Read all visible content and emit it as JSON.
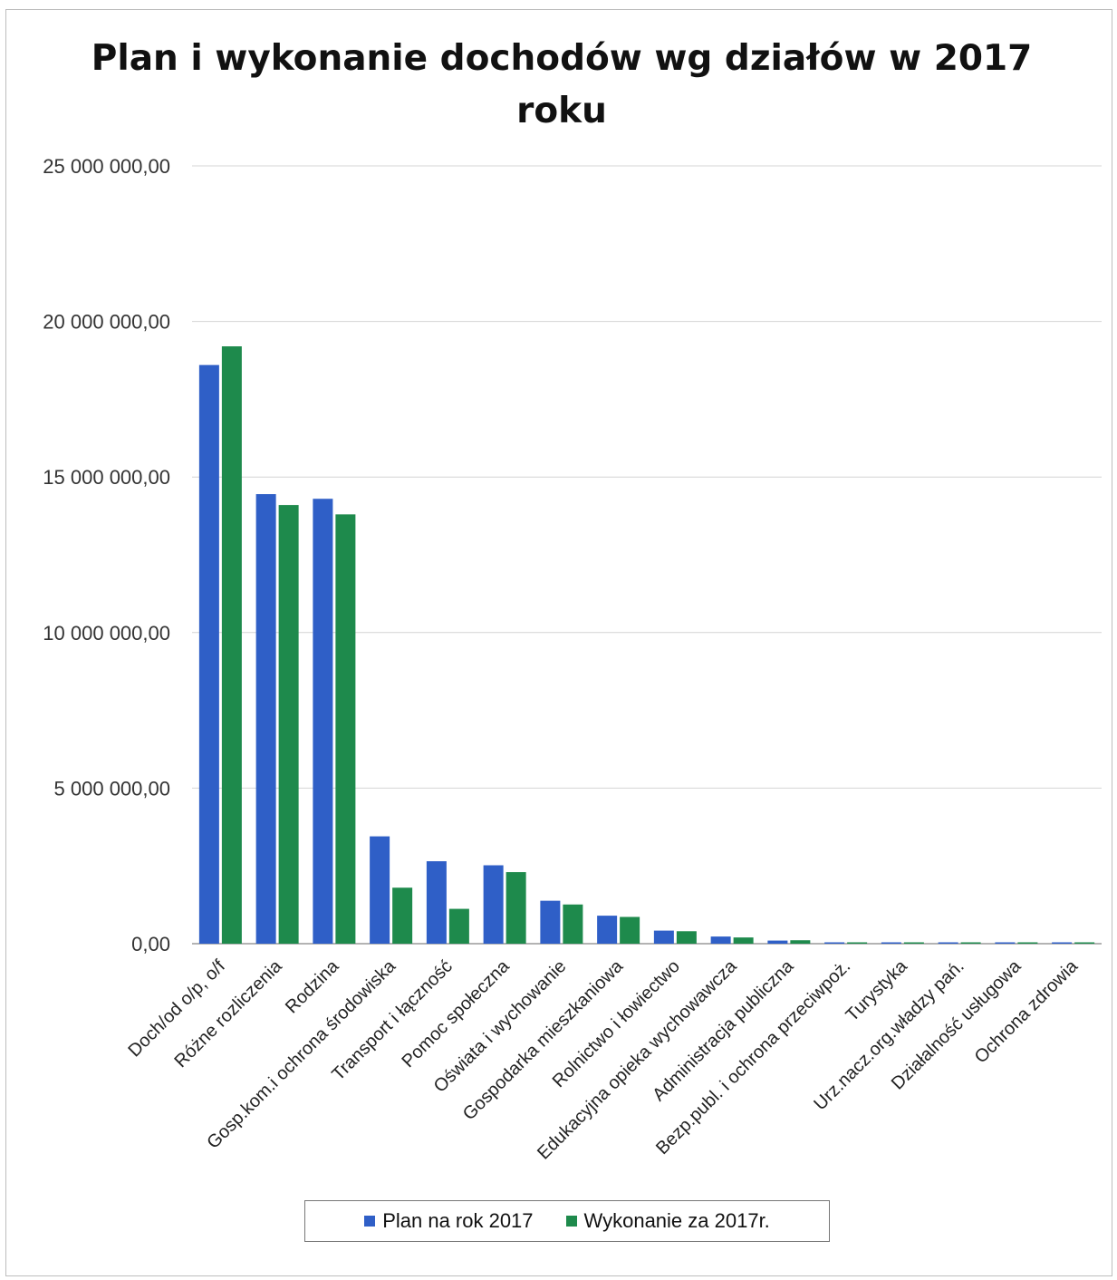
{
  "chart_data": {
    "type": "bar",
    "title": "Plan i wykonanie dochodów wg działów w 2017 roku",
    "xlabel": "",
    "ylabel": "",
    "ylim": [
      0,
      25000000
    ],
    "yticks": [
      0,
      5000000,
      10000000,
      15000000,
      20000000,
      25000000
    ],
    "ytick_labels": [
      "0,00",
      "5 000 000,00",
      "10 000 000,00",
      "15 000 000,00",
      "20 000 000,00",
      "25 000 000,00"
    ],
    "grid": true,
    "legend_position": "bottom",
    "categories": [
      "Doch/od o/p, o/f",
      "Różne rozliczenia",
      "Rodzina",
      "Gosp.kom.i ochrona środowiska",
      "Transport i łączność",
      "Pomoc społeczna",
      "Oświata i wychowanie",
      "Gospodarka mieszkaniowa",
      "Rolnictwo i łowiectwo",
      "Edukacyjna opieka wychowawcza",
      "Administracja publiczna",
      "Bezp.publ. i ochrona przeciwpoż.",
      "Turystyka",
      "Urz.nacz.org.władzy pań.",
      "Działalność usługowa",
      "Ochrona zdrowia"
    ],
    "series": [
      {
        "name": "Plan na rok 2017",
        "color": "#2f5fc7",
        "values": [
          18600000,
          14450000,
          14300000,
          3450000,
          2650000,
          2520000,
          1380000,
          900000,
          420000,
          230000,
          100000,
          20000,
          15000,
          25000,
          5000,
          25000
        ]
      },
      {
        "name": "Wykonanie za 2017r.",
        "color": "#1e8a4c",
        "values": [
          19200000,
          14100000,
          13800000,
          1800000,
          1120000,
          2300000,
          1260000,
          860000,
          400000,
          200000,
          110000,
          15000,
          12000,
          22000,
          20000,
          22000
        ]
      }
    ]
  }
}
